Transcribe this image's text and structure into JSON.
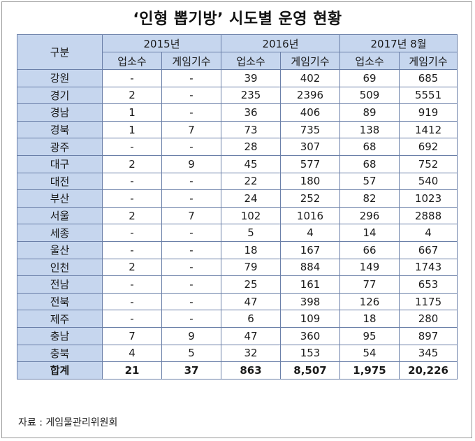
{
  "chart_data": {
    "type": "table",
    "title": "‘인형 뽑기방’ 시도별 운영 현황",
    "row_header_label": "구분",
    "periods": [
      "2015년",
      "2016년",
      "2017년 8월"
    ],
    "subcolumns": [
      "업소수",
      "게임기수"
    ],
    "rows": [
      {
        "region": "강원",
        "values": [
          "-",
          "-",
          "39",
          "402",
          "69",
          "685"
        ]
      },
      {
        "region": "경기",
        "values": [
          "2",
          "-",
          "235",
          "2396",
          "509",
          "5551"
        ]
      },
      {
        "region": "경남",
        "values": [
          "1",
          "-",
          "36",
          "406",
          "89",
          "919"
        ]
      },
      {
        "region": "경북",
        "values": [
          "1",
          "7",
          "73",
          "735",
          "138",
          "1412"
        ]
      },
      {
        "region": "광주",
        "values": [
          "-",
          "-",
          "28",
          "307",
          "68",
          "692"
        ]
      },
      {
        "region": "대구",
        "values": [
          "2",
          "9",
          "45",
          "577",
          "68",
          "752"
        ]
      },
      {
        "region": "대전",
        "values": [
          "-",
          "-",
          "22",
          "180",
          "57",
          "540"
        ]
      },
      {
        "region": "부산",
        "values": [
          "-",
          "-",
          "24",
          "252",
          "82",
          "1023"
        ]
      },
      {
        "region": "서울",
        "values": [
          "2",
          "7",
          "102",
          "1016",
          "296",
          "2888"
        ]
      },
      {
        "region": "세종",
        "values": [
          "-",
          "-",
          "5",
          "4",
          "14",
          "4"
        ]
      },
      {
        "region": "울산",
        "values": [
          "-",
          "-",
          "18",
          "167",
          "66",
          "667"
        ]
      },
      {
        "region": "인천",
        "values": [
          "2",
          "-",
          "79",
          "884",
          "149",
          "1743"
        ]
      },
      {
        "region": "전남",
        "values": [
          "-",
          "-",
          "25",
          "161",
          "77",
          "653"
        ]
      },
      {
        "region": "전북",
        "values": [
          "-",
          "-",
          "47",
          "398",
          "126",
          "1175"
        ]
      },
      {
        "region": "제주",
        "values": [
          "-",
          "-",
          "6",
          "109",
          "18",
          "280"
        ]
      },
      {
        "region": "충남",
        "values": [
          "7",
          "9",
          "47",
          "360",
          "95",
          "897"
        ]
      },
      {
        "region": "충북",
        "values": [
          "4",
          "5",
          "32",
          "153",
          "54",
          "345"
        ]
      }
    ],
    "total": {
      "region": "합계",
      "values": [
        "21",
        "37",
        "863",
        "8,507",
        "1,975",
        "20,226"
      ]
    },
    "source": "자료 : 게임물관리위원회"
  },
  "colors": {
    "header_fill": "#c6d6ee",
    "grid_line": "#6a7fa8"
  }
}
